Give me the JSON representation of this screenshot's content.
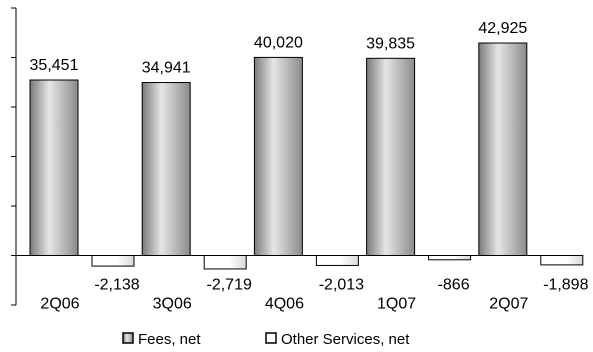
{
  "chart_data": {
    "type": "bar",
    "categories": [
      "2Q06",
      "3Q06",
      "4Q06",
      "1Q07",
      "2Q07"
    ],
    "series": [
      {
        "name": "Fees, net",
        "values": [
          35451,
          34941,
          40020,
          39835,
          42925
        ],
        "labels": [
          "35,451",
          "34,941",
          "40,020",
          "39,835",
          "42,925"
        ]
      },
      {
        "name": "Other Services, net",
        "values": [
          -2138,
          -2719,
          -2013,
          -866,
          -1898
        ],
        "labels": [
          "-2,138",
          "-2,719",
          "-2,013",
          "-866",
          "-1,898"
        ]
      }
    ],
    "ylim": [
      -10000,
      50000
    ],
    "ytick_step": 10000,
    "grid": false,
    "legend_position": "bottom",
    "colors": {
      "fees": "#c0c0c0",
      "fees_dark": "#7a7a7a",
      "fees_light": "#e6e6e6",
      "other": "#ffffff",
      "axis": "#000000"
    }
  }
}
